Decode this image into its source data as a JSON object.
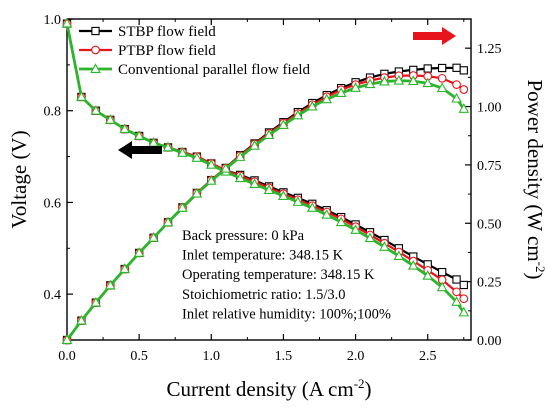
{
  "chart_data": {
    "type": "line",
    "xlabel": "Current density (A cm",
    "xlabel_sup": "-2",
    "xlabel_tail": ")",
    "ylabel_left": "Voltage (V)",
    "ylabel_right": "Power density (W cm",
    "ylabel_right_sup": "-2",
    "ylabel_right_tail": ")",
    "xlim": [
      0,
      2.8
    ],
    "ylim_left": [
      0.3,
      1.0
    ],
    "ylim_right": [
      0,
      1.375
    ],
    "x_ticks": [
      "0.0",
      "0.5",
      "1.0",
      "1.5",
      "2.0",
      "2.5"
    ],
    "y_left_ticks": [
      "0.4",
      "0.6",
      "0.8",
      "1.0"
    ],
    "y_right_ticks": [
      "0.00",
      "0.25",
      "0.50",
      "0.75",
      "1.00",
      "1.25"
    ],
    "legend": [
      {
        "label": "STBP flow field",
        "color": "#000000",
        "marker": "square"
      },
      {
        "label": "PTBP flow field",
        "color": "#e8141b",
        "marker": "circle"
      },
      {
        "label": "Conventional parallel flow field",
        "color": "#2cb52c",
        "marker": "triangle"
      }
    ],
    "annotations": [
      "Back pressure: 0 kPa",
      "Inlet temperature: 348.15 K",
      "Operating temperature: 348.15 K",
      "Stoichiometric ratio: 1.5/3.0",
      "Inlet relative humidity: 100%;100%"
    ],
    "arrows": [
      {
        "direction": "left",
        "color": "#000000",
        "axis": "voltage"
      },
      {
        "direction": "right",
        "color": "#e8141b",
        "axis": "power density"
      }
    ],
    "x": [
      0.0,
      0.1,
      0.2,
      0.3,
      0.4,
      0.5,
      0.6,
      0.7,
      0.8,
      0.9,
      1.0,
      1.1,
      1.2,
      1.3,
      1.4,
      1.5,
      1.6,
      1.7,
      1.8,
      1.9,
      2.0,
      2.1,
      2.2,
      2.3,
      2.4,
      2.5,
      2.6,
      2.7,
      2.75
    ],
    "series": [
      {
        "name": "STBP flow field",
        "axis": "voltage",
        "values": [
          0.99,
          0.83,
          0.8,
          0.78,
          0.76,
          0.745,
          0.73,
          0.72,
          0.71,
          0.7,
          0.685,
          0.67,
          0.66,
          0.648,
          0.635,
          0.622,
          0.61,
          0.597,
          0.583,
          0.568,
          0.552,
          0.535,
          0.518,
          0.5,
          0.482,
          0.465,
          0.448,
          0.432,
          0.42
        ]
      },
      {
        "name": "PTBP flow field",
        "axis": "voltage",
        "values": [
          0.99,
          0.83,
          0.8,
          0.78,
          0.76,
          0.745,
          0.73,
          0.72,
          0.71,
          0.7,
          0.685,
          0.67,
          0.658,
          0.645,
          0.632,
          0.619,
          0.606,
          0.593,
          0.579,
          0.564,
          0.547,
          0.529,
          0.511,
          0.492,
          0.472,
          0.452,
          0.431,
          0.405,
          0.39
        ]
      },
      {
        "name": "Conventional parallel flow field",
        "axis": "voltage",
        "values": [
          0.99,
          0.83,
          0.8,
          0.78,
          0.76,
          0.745,
          0.73,
          0.72,
          0.708,
          0.697,
          0.682,
          0.667,
          0.653,
          0.64,
          0.627,
          0.614,
          0.601,
          0.588,
          0.573,
          0.557,
          0.54,
          0.522,
          0.503,
          0.483,
          0.462,
          0.44,
          0.415,
          0.383,
          0.36
        ]
      },
      {
        "name": "STBP flow field",
        "axis": "power",
        "values": [
          0.0,
          0.083,
          0.16,
          0.234,
          0.304,
          0.373,
          0.438,
          0.504,
          0.568,
          0.63,
          0.685,
          0.737,
          0.792,
          0.842,
          0.889,
          0.933,
          0.976,
          1.015,
          1.049,
          1.079,
          1.104,
          1.124,
          1.14,
          1.15,
          1.157,
          1.163,
          1.165,
          1.166,
          1.155
        ]
      },
      {
        "name": "PTBP flow field",
        "axis": "power",
        "values": [
          0.0,
          0.083,
          0.16,
          0.234,
          0.304,
          0.373,
          0.438,
          0.504,
          0.568,
          0.63,
          0.685,
          0.737,
          0.79,
          0.839,
          0.885,
          0.929,
          0.97,
          1.008,
          1.042,
          1.072,
          1.094,
          1.111,
          1.124,
          1.132,
          1.133,
          1.13,
          1.121,
          1.094,
          1.073
        ]
      },
      {
        "name": "Conventional parallel flow field",
        "axis": "power",
        "values": [
          0.0,
          0.083,
          0.16,
          0.234,
          0.304,
          0.373,
          0.438,
          0.504,
          0.566,
          0.627,
          0.682,
          0.734,
          0.784,
          0.832,
          0.878,
          0.921,
          0.962,
          1.0,
          1.031,
          1.058,
          1.08,
          1.096,
          1.107,
          1.111,
          1.109,
          1.1,
          1.079,
          1.034,
          0.99
        ]
      }
    ]
  }
}
